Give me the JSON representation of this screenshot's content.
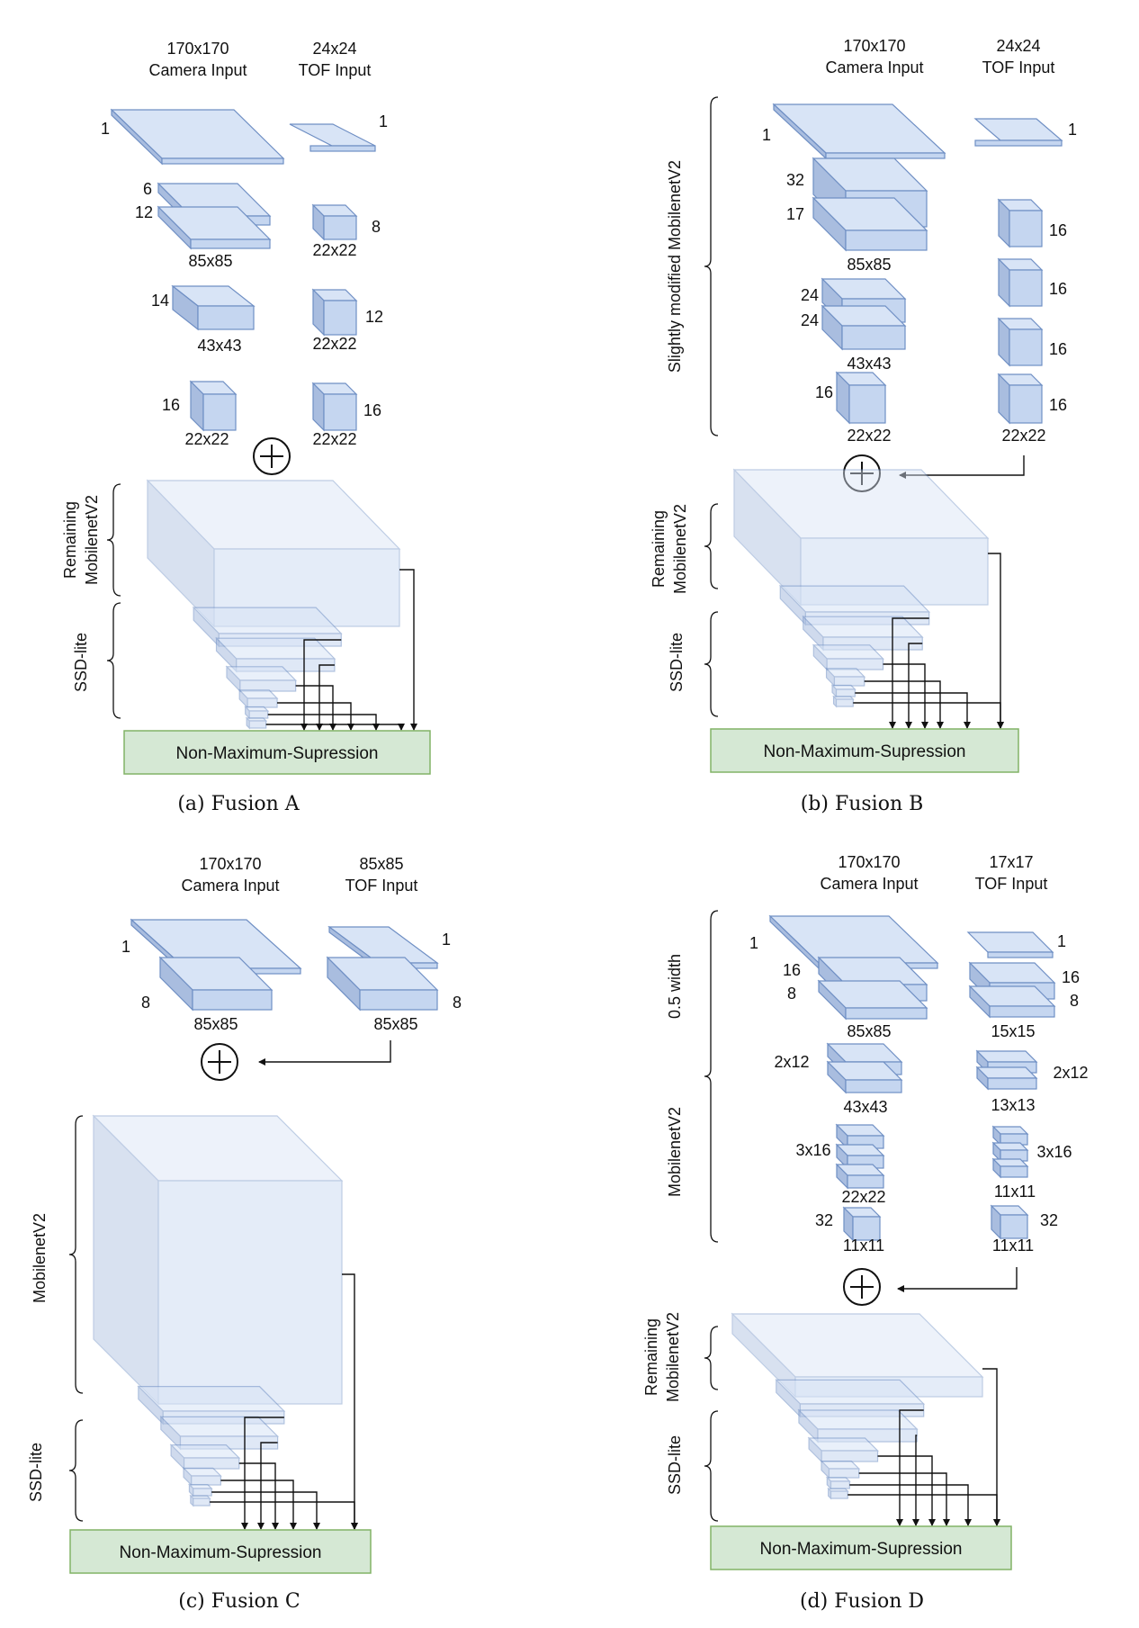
{
  "panels": [
    {
      "id": "a",
      "caption": "(a) Fusion A",
      "camera_input": "170x170\nCamera Input",
      "tof_input": "24x24\nTOF Input",
      "stage_labels": [
        "Remaining\nMobilenetV2",
        "SSD-lite"
      ],
      "nms": "Non-Maximum-Supression",
      "labels": [
        "1",
        "1",
        "6",
        "12",
        "85x85",
        "8",
        "22x22",
        "14",
        "43x43",
        "12",
        "22x22",
        "16",
        "22x22",
        "16",
        "22x22"
      ]
    },
    {
      "id": "b",
      "caption": "(b) Fusion B",
      "camera_input": "170x170\nCamera Input",
      "tof_input": "24x24\nTOF Input",
      "stage_labels": [
        "Slightly modified MobilenetV2",
        "Remaining\nMobilenetV2",
        "SSD-lite"
      ],
      "nms": "Non-Maximum-Supression",
      "labels": [
        "1",
        "1",
        "32",
        "17",
        "85x85",
        "16",
        "16",
        "24",
        "24",
        "43x43",
        "16",
        "16",
        "22x22",
        "16",
        "22x22"
      ]
    },
    {
      "id": "c",
      "caption": "(c) Fusion C",
      "camera_input": "170x170\nCamera Input",
      "tof_input": "85x85\nTOF Input",
      "stage_labels": [
        "MobilenetV2",
        "SSD-lite"
      ],
      "nms": "Non-Maximum-Supression",
      "labels": [
        "1",
        "1",
        "8",
        "85x85",
        "8",
        "85x85"
      ]
    },
    {
      "id": "d",
      "caption": "(d) Fusion D",
      "camera_input": "170x170\nCamera Input",
      "tof_input": "17x17\nTOF Input",
      "stage_labels": [
        "0.5 width",
        "MobilenetV2",
        "Remaining\nMobilenetV2",
        "SSD-lite"
      ],
      "nms": "Non-Maximum-Supression",
      "labels": [
        "1",
        "1",
        "16",
        "8",
        "85x85",
        "16",
        "8",
        "15x15",
        "2x12",
        "43x43",
        "2x12",
        "13x13",
        "3x16",
        "22x22",
        "3x16",
        "11x11",
        "32",
        "11x11",
        "32",
        "11x11"
      ]
    }
  ],
  "colors": {
    "block_fill": "#c5d6f0",
    "block_top": "#d8e4f6",
    "block_side": "#a9bddf",
    "block_stroke": "#6f8fc4",
    "nms_fill": "#d5e8d4",
    "nms_stroke": "#82b366"
  }
}
